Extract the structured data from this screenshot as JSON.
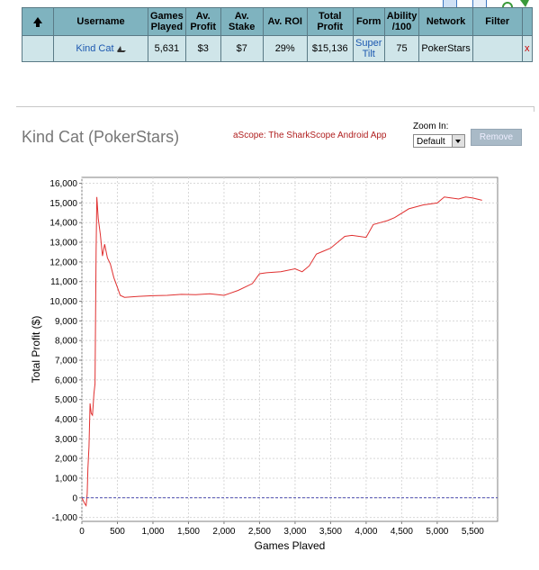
{
  "table": {
    "headers": [
      "",
      "Username",
      "Games Played",
      "Av. Profit",
      "Av. Stake",
      "Av. ROI",
      "Total Profit",
      "Form",
      "Ability /100",
      "Network",
      "Filter",
      ""
    ],
    "row": {
      "username": "Kind Cat",
      "games": "5,631",
      "av_profit": "$3",
      "av_stake": "$7",
      "av_roi": "29%",
      "total_profit": "$15,136",
      "form": "Super Tilt",
      "ability": "75",
      "network": "PokerStars",
      "filter": "",
      "remove": "x"
    }
  },
  "player_title": "Kind Cat (PokerStars)",
  "ascope_link": "aScope: The SharkScope Android App",
  "zoom": {
    "label": "Zoom In:",
    "selected": "Default"
  },
  "remove_button": "Remove",
  "chart_data": {
    "type": "line",
    "xlabel": "Games Played",
    "ylabel": "Total Profit ($)",
    "xlim": [
      0,
      5850
    ],
    "ylim": [
      -1200,
      16300
    ],
    "x_ticks": [
      "0",
      "500",
      "1,000",
      "1,500",
      "2,000",
      "2,500",
      "3,000",
      "3,500",
      "4,000",
      "4,500",
      "5,000",
      "5,500"
    ],
    "y_ticks": [
      "-1,000",
      "0",
      "1,000",
      "2,000",
      "3,000",
      "4,000",
      "5,000",
      "6,000",
      "7,000",
      "8,000",
      "9,000",
      "10,000",
      "11,000",
      "12,000",
      "13,000",
      "14,000",
      "15,000",
      "16,000"
    ],
    "grid": true,
    "series": [
      {
        "color": "#e03030",
        "x": [
          0,
          40,
          60,
          75,
          85,
          100,
          115,
          130,
          150,
          170,
          185,
          200,
          210,
          230,
          260,
          290,
          320,
          360,
          400,
          450,
          500,
          540,
          600,
          800,
          1000,
          1200,
          1400,
          1600,
          1800,
          2000,
          2200,
          2400,
          2500,
          2600,
          2800,
          3000,
          3100,
          3200,
          3300,
          3400,
          3500,
          3600,
          3700,
          3800,
          4000,
          4100,
          4200,
          4300,
          4400,
          4600,
          4800,
          5000,
          5100,
          5200,
          5300,
          5400,
          5500,
          5631
        ],
        "y": [
          0,
          -300,
          -400,
          200,
          1500,
          2600,
          4800,
          4300,
          4200,
          5300,
          5800,
          12500,
          15300,
          14200,
          13400,
          12300,
          12900,
          12200,
          11900,
          11200,
          10700,
          10300,
          10200,
          10250,
          10280,
          10300,
          10350,
          10330,
          10380,
          10300,
          10550,
          10900,
          11400,
          11450,
          11500,
          11650,
          11500,
          11800,
          12400,
          12550,
          12700,
          13000,
          13300,
          13350,
          13250,
          13900,
          14000,
          14100,
          14250,
          14700,
          14900,
          15000,
          15300,
          15250,
          15200,
          15300,
          15250,
          15136
        ]
      },
      {
        "color": "#4a4ab0",
        "x": [
          0,
          5850
        ],
        "y": [
          0,
          0
        ]
      }
    ]
  }
}
